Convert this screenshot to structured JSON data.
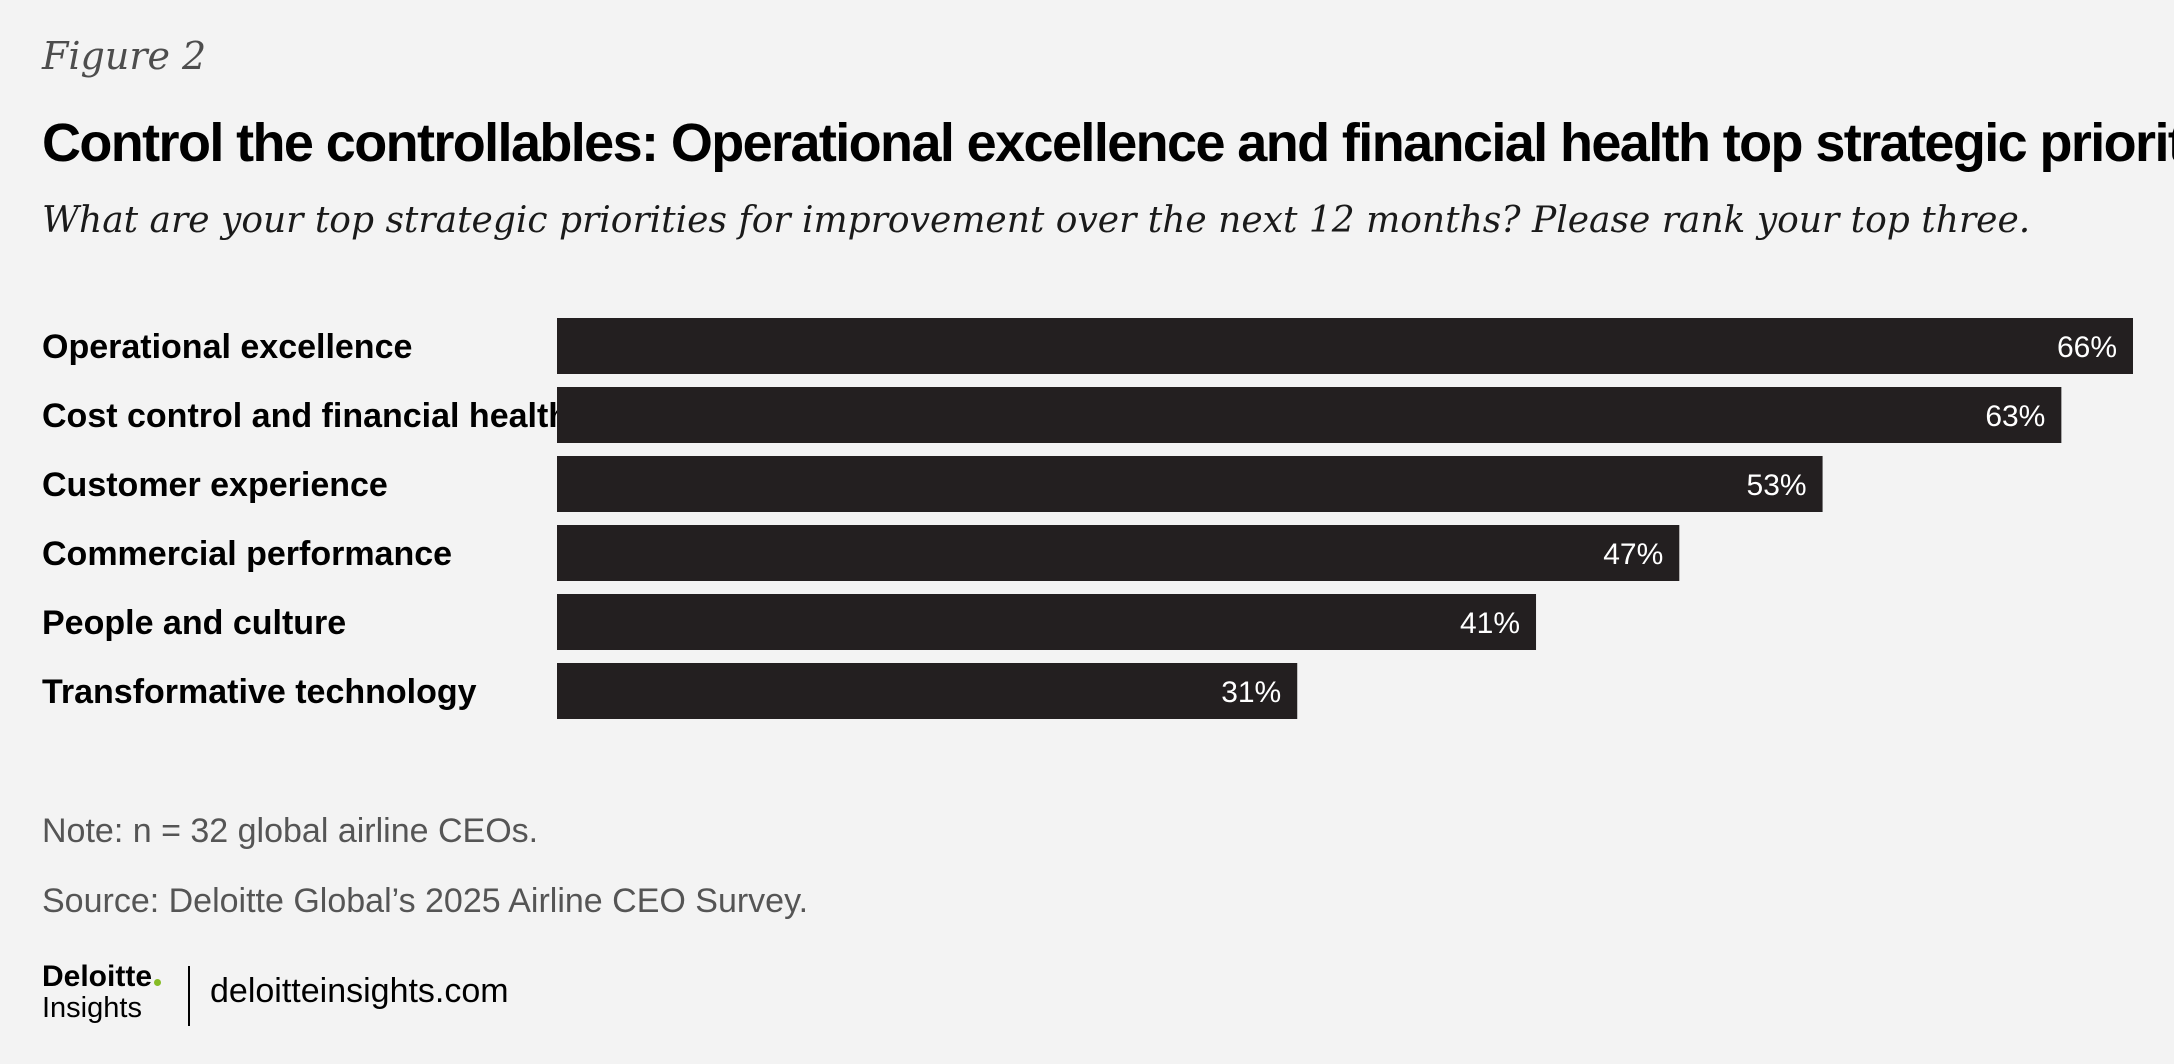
{
  "figure_label": "Figure 2",
  "title": "Control the controllables: Operational excellence and financial health top strategic priorities",
  "subtitle": "What are your top strategic priorities for improvement over the next 12 months? Please rank your top three.",
  "chart_data": {
    "type": "bar",
    "orientation": "horizontal",
    "categories": [
      "Operational excellence",
      "Cost control and financial health",
      "Customer experience",
      "Commercial performance",
      "People and culture",
      "Transformative technology"
    ],
    "values": [
      66,
      63,
      53,
      47,
      41,
      31
    ],
    "value_labels": [
      "66%",
      "63%",
      "53%",
      "47%",
      "41%",
      "31%"
    ],
    "xlim": [
      0,
      66
    ],
    "grid": false,
    "bar_color": "#231f20",
    "label_color": "#ffffff"
  },
  "note": "Note: n = 32 global airline CEOs.",
  "source": "Source: Deloitte Global’s 2025 Airline CEO Survey.",
  "footer": {
    "brand": "Deloitte",
    "brand_sub": "Insights",
    "brand_dot_color": "#86bc25",
    "site": "deloitteinsights.com"
  }
}
